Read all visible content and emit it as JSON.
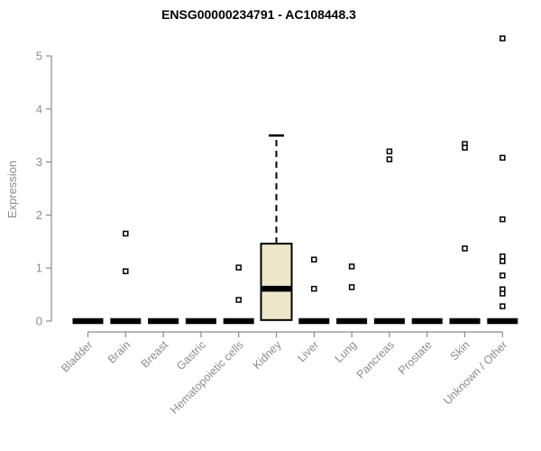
{
  "chart_data": {
    "type": "boxplot",
    "title": "ENSG00000234791 - AC108448.3",
    "ylabel": "Expression",
    "xlabel": "",
    "ylim": [
      0,
      5
    ],
    "yticks": [
      0,
      1,
      2,
      3,
      4,
      5
    ],
    "grid": false,
    "legend": false,
    "categories": [
      "Bladder",
      "Brain",
      "Breast",
      "Gastric",
      "Hematopoietic cells",
      "Kidney",
      "Liver",
      "Lung",
      "Pancreas",
      "Prostate",
      "Skin",
      "Unknown / Other"
    ],
    "boxes": [
      {
        "category": "Bladder",
        "q1": 0,
        "median": 0,
        "q3": 0,
        "whisker_low": 0,
        "whisker_high": 0,
        "outliers": []
      },
      {
        "category": "Brain",
        "q1": 0,
        "median": 0,
        "q3": 0,
        "whisker_low": 0,
        "whisker_high": 0,
        "outliers": [
          1.65,
          0.94
        ]
      },
      {
        "category": "Breast",
        "q1": 0,
        "median": 0,
        "q3": 0,
        "whisker_low": 0,
        "whisker_high": 0,
        "outliers": []
      },
      {
        "category": "Gastric",
        "q1": 0,
        "median": 0,
        "q3": 0,
        "whisker_low": 0,
        "whisker_high": 0,
        "outliers": []
      },
      {
        "category": "Hematopoietic cells",
        "q1": 0,
        "median": 0,
        "q3": 0,
        "whisker_low": 0,
        "whisker_high": 0,
        "outliers": [
          1.01,
          0.4
        ]
      },
      {
        "category": "Kidney",
        "q1": 0.02,
        "median": 0.61,
        "q3": 1.46,
        "whisker_low": 0.02,
        "whisker_high": 3.5,
        "outliers": []
      },
      {
        "category": "Liver",
        "q1": 0,
        "median": 0,
        "q3": 0,
        "whisker_low": 0,
        "whisker_high": 0,
        "outliers": [
          1.16,
          0.61
        ]
      },
      {
        "category": "Lung",
        "q1": 0,
        "median": 0,
        "q3": 0,
        "whisker_low": 0,
        "whisker_high": 0,
        "outliers": [
          1.03,
          0.64
        ]
      },
      {
        "category": "Pancreas",
        "q1": 0,
        "median": 0,
        "q3": 0,
        "whisker_low": 0,
        "whisker_high": 0,
        "outliers": [
          3.2,
          3.05
        ]
      },
      {
        "category": "Prostate",
        "q1": 0,
        "median": 0,
        "q3": 0,
        "whisker_low": 0,
        "whisker_high": 0,
        "outliers": []
      },
      {
        "category": "Skin",
        "q1": 0,
        "median": 0,
        "q3": 0,
        "whisker_low": 0,
        "whisker_high": 0,
        "outliers": [
          3.34,
          3.27,
          1.37
        ]
      },
      {
        "category": "Unknown / Other",
        "q1": 0,
        "median": 0,
        "q3": 0,
        "whisker_low": 0,
        "whisker_high": 0,
        "outliers": [
          5.33,
          3.08,
          1.92,
          1.22,
          1.13,
          0.86,
          0.6,
          0.52,
          0.28
        ]
      }
    ],
    "style": {
      "axis_color": "#8a8a8a",
      "label_color": "#8c8c8c",
      "title_color": "#000000",
      "box_fill": "#ece7cb",
      "box_stroke": "#000000",
      "median_color": "#000000",
      "collapsed_bar_color": "#000000",
      "outlier_fill": "#ffffff",
      "outlier_stroke": "#000000"
    }
  }
}
